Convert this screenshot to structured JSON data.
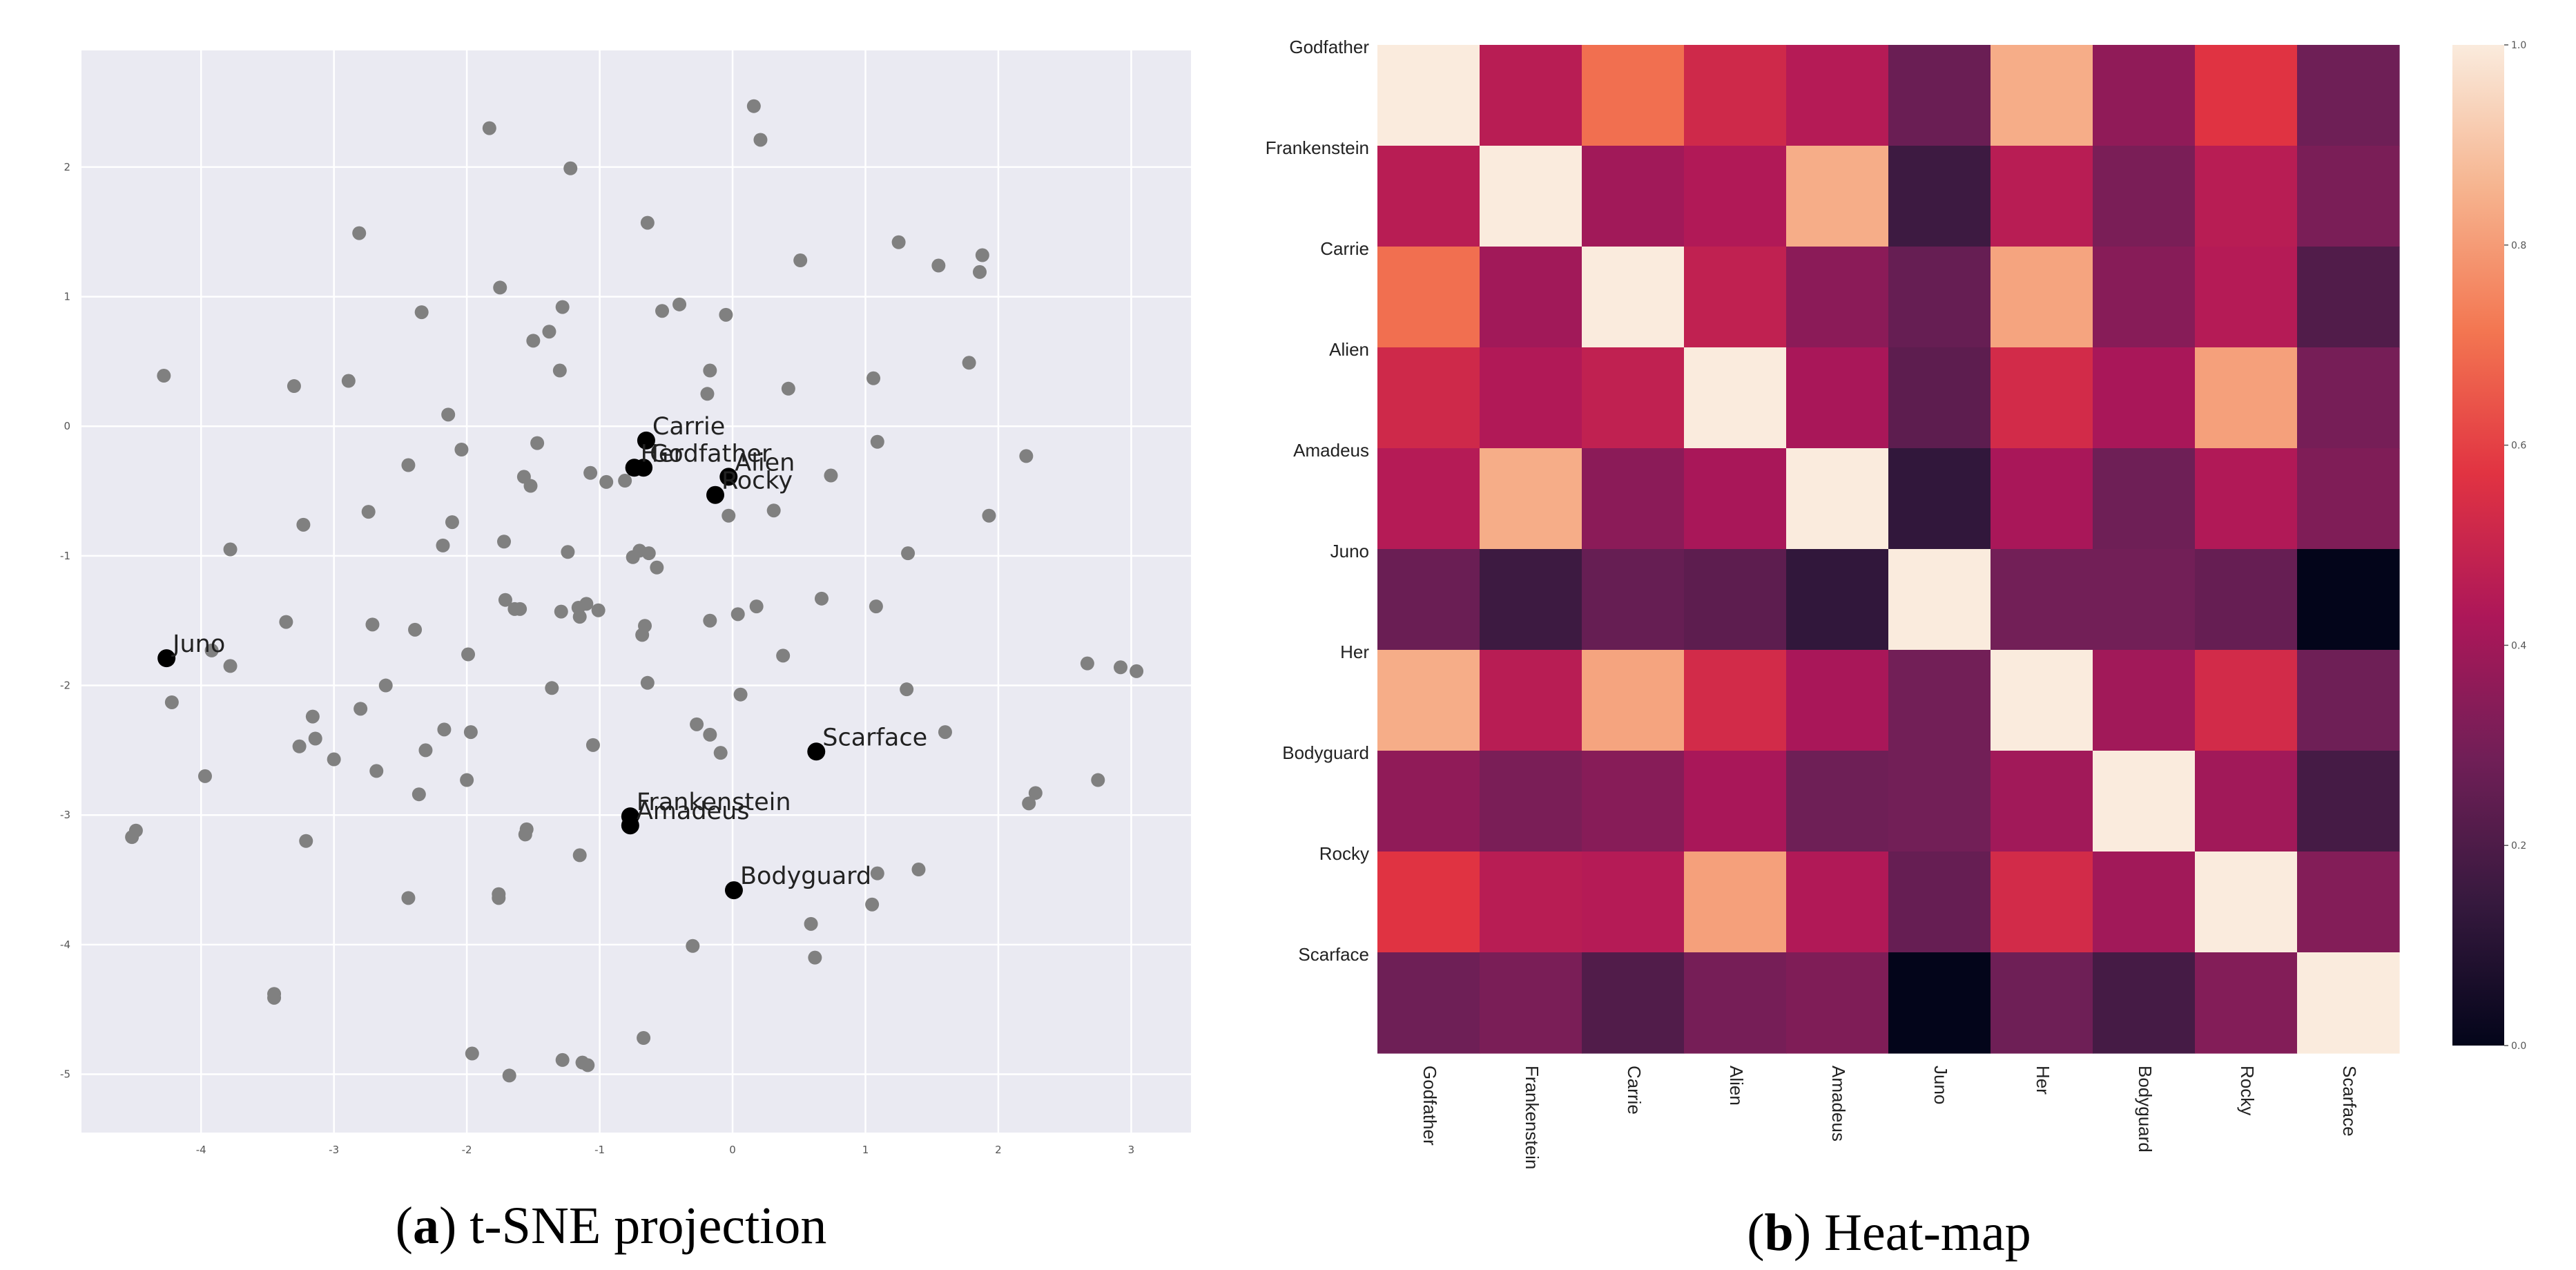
{
  "panels": {
    "a": {
      "letter": "a",
      "caption": "t-SNE projection"
    },
    "b": {
      "letter": "b",
      "caption": "Heat-map"
    }
  },
  "chart_data": [
    {
      "type": "scatter",
      "title": "",
      "xlabel": "",
      "ylabel": "",
      "xlim": [
        -4.9,
        3.45
      ],
      "ylim": [
        -5.45,
        2.9
      ],
      "xticks": [
        -4,
        -3,
        -2,
        -1,
        0,
        1,
        2,
        3
      ],
      "yticks": [
        -5,
        -4,
        -3,
        -2,
        -1,
        0,
        1,
        2
      ],
      "grid": true,
      "background_color": "#eaeaf2",
      "series": [
        {
          "color": "#808080",
          "points": [
            [
              -1.83,
              2.3
            ],
            [
              0.16,
              2.47
            ],
            [
              0.21,
              2.21
            ],
            [
              -1.22,
              1.99
            ],
            [
              -2.81,
              1.49
            ],
            [
              -0.64,
              1.57
            ],
            [
              0.51,
              1.28
            ],
            [
              1.25,
              1.42
            ],
            [
              1.55,
              1.24
            ],
            [
              1.88,
              1.32
            ],
            [
              1.86,
              1.19
            ],
            [
              -1.75,
              1.07
            ],
            [
              -2.34,
              0.88
            ],
            [
              -1.28,
              0.92
            ],
            [
              -0.53,
              0.89
            ],
            [
              -0.4,
              0.94
            ],
            [
              -0.05,
              0.86
            ],
            [
              -1.5,
              0.66
            ],
            [
              -1.38,
              0.73
            ],
            [
              -4.28,
              0.39
            ],
            [
              -3.3,
              0.31
            ],
            [
              -2.89,
              0.35
            ],
            [
              -1.3,
              0.43
            ],
            [
              -0.17,
              0.43
            ],
            [
              -0.19,
              0.25
            ],
            [
              0.42,
              0.29
            ],
            [
              1.06,
              0.37
            ],
            [
              1.78,
              0.49
            ],
            [
              -2.14,
              0.09
            ],
            [
              -2.04,
              -0.18
            ],
            [
              -1.47,
              -0.13
            ],
            [
              1.09,
              -0.12
            ],
            [
              2.21,
              -0.23
            ],
            [
              -2.44,
              -0.3
            ],
            [
              -1.57,
              -0.39
            ],
            [
              -1.52,
              -0.46
            ],
            [
              -1.07,
              -0.36
            ],
            [
              -0.95,
              -0.43
            ],
            [
              -0.81,
              -0.42
            ],
            [
              0.74,
              -0.38
            ],
            [
              -3.23,
              -0.76
            ],
            [
              -2.74,
              -0.66
            ],
            [
              -2.11,
              -0.74
            ],
            [
              -2.18,
              -0.92
            ],
            [
              -1.72,
              -0.89
            ],
            [
              -1.24,
              -0.97
            ],
            [
              -0.75,
              -1.01
            ],
            [
              -0.7,
              -0.96
            ],
            [
              -0.63,
              -0.98
            ],
            [
              -0.57,
              -1.09
            ],
            [
              -0.03,
              -0.69
            ],
            [
              0.31,
              -0.65
            ],
            [
              1.93,
              -0.69
            ],
            [
              1.32,
              -0.98
            ],
            [
              -3.78,
              -0.95
            ],
            [
              -1.71,
              -1.34
            ],
            [
              -1.64,
              -1.41
            ],
            [
              -1.6,
              -1.41
            ],
            [
              -1.29,
              -1.43
            ],
            [
              -1.16,
              -1.4
            ],
            [
              -1.15,
              -1.47
            ],
            [
              -1.1,
              -1.37
            ],
            [
              -1.01,
              -1.42
            ],
            [
              -0.66,
              -1.54
            ],
            [
              -0.68,
              -1.61
            ],
            [
              -0.17,
              -1.5
            ],
            [
              0.04,
              -1.45
            ],
            [
              0.18,
              -1.39
            ],
            [
              0.67,
              -1.33
            ],
            [
              1.08,
              -1.39
            ],
            [
              -3.36,
              -1.51
            ],
            [
              -2.71,
              -1.53
            ],
            [
              -2.39,
              -1.57
            ],
            [
              -3.92,
              -1.73
            ],
            [
              -3.78,
              -1.85
            ],
            [
              -1.99,
              -1.76
            ],
            [
              0.38,
              -1.77
            ],
            [
              -4.22,
              -2.13
            ],
            [
              -3.16,
              -2.24
            ],
            [
              -2.8,
              -2.18
            ],
            [
              -2.61,
              -2.0
            ],
            [
              -2.17,
              -2.34
            ],
            [
              -1.97,
              -2.36
            ],
            [
              -1.36,
              -2.02
            ],
            [
              -0.64,
              -1.98
            ],
            [
              0.06,
              -2.07
            ],
            [
              1.31,
              -2.03
            ],
            [
              2.67,
              -1.83
            ],
            [
              2.92,
              -1.86
            ],
            [
              3.04,
              -1.89
            ],
            [
              -3.26,
              -2.47
            ],
            [
              -3.14,
              -2.41
            ],
            [
              -3.0,
              -2.57
            ],
            [
              -2.68,
              -2.66
            ],
            [
              -2.31,
              -2.5
            ],
            [
              -1.05,
              -2.46
            ],
            [
              -0.27,
              -2.3
            ],
            [
              -0.17,
              -2.38
            ],
            [
              -0.09,
              -2.52
            ],
            [
              1.6,
              -2.36
            ],
            [
              -3.97,
              -2.7
            ],
            [
              -2.36,
              -2.84
            ],
            [
              -2.0,
              -2.73
            ],
            [
              2.75,
              -2.73
            ],
            [
              2.28,
              -2.83
            ],
            [
              2.23,
              -2.91
            ],
            [
              -4.49,
              -3.12
            ],
            [
              -4.52,
              -3.17
            ],
            [
              -3.21,
              -3.2
            ],
            [
              -1.55,
              -3.11
            ],
            [
              -1.56,
              -3.15
            ],
            [
              -1.15,
              -3.31
            ],
            [
              1.09,
              -3.45
            ],
            [
              1.4,
              -3.42
            ],
            [
              -1.76,
              -3.61
            ],
            [
              -1.76,
              -3.64
            ],
            [
              -2.44,
              -3.64
            ],
            [
              1.05,
              -3.69
            ],
            [
              0.59,
              -3.84
            ],
            [
              -0.3,
              -4.01
            ],
            [
              0.62,
              -4.1
            ],
            [
              -3.45,
              -4.38
            ],
            [
              -3.45,
              -4.41
            ],
            [
              -0.67,
              -4.72
            ],
            [
              -1.96,
              -4.84
            ],
            [
              -1.28,
              -4.89
            ],
            [
              -1.13,
              -4.91
            ],
            [
              -1.09,
              -4.93
            ],
            [
              -1.68,
              -5.01
            ]
          ]
        },
        {
          "color": "#000000",
          "points": [
            {
              "label": "Carrie",
              "x": -0.65,
              "y": -0.11
            },
            {
              "label": "Her",
              "x": -0.74,
              "y": -0.32
            },
            {
              "label": "Godfather",
              "x": -0.67,
              "y": -0.32
            },
            {
              "label": "Alien",
              "x": -0.03,
              "y": -0.39
            },
            {
              "label": "Rocky",
              "x": -0.13,
              "y": -0.53
            },
            {
              "label": "Juno",
              "x": -4.26,
              "y": -1.79
            },
            {
              "label": "Scarface",
              "x": 0.63,
              "y": -2.51
            },
            {
              "label": "Frankenstein",
              "x": -0.77,
              "y": -3.01
            },
            {
              "label": "Amadeus",
              "x": -0.77,
              "y": -3.08
            },
            {
              "label": "Bodyguard",
              "x": 0.01,
              "y": -3.58
            }
          ]
        }
      ]
    },
    {
      "type": "heatmap",
      "title": "",
      "rows": [
        "Godfather",
        "Frankenstein",
        "Carrie",
        "Alien",
        "Amadeus",
        "Juno",
        "Her",
        "Bodyguard",
        "Rocky",
        "Scarface"
      ],
      "columns": [
        "Godfather",
        "Frankenstein",
        "Carrie",
        "Alien",
        "Amadeus",
        "Juno",
        "Her",
        "Bodyguard",
        "Rocky",
        "Scarface"
      ],
      "values": [
        [
          1.0,
          0.46,
          0.7,
          0.52,
          0.45,
          0.27,
          0.84,
          0.36,
          0.57,
          0.28
        ],
        [
          0.46,
          1.0,
          0.4,
          0.44,
          0.84,
          0.16,
          0.46,
          0.31,
          0.46,
          0.31
        ],
        [
          0.7,
          0.4,
          1.0,
          0.48,
          0.35,
          0.26,
          0.82,
          0.34,
          0.45,
          0.21
        ],
        [
          0.52,
          0.44,
          0.48,
          1.0,
          0.42,
          0.24,
          0.53,
          0.42,
          0.81,
          0.3
        ],
        [
          0.45,
          0.84,
          0.35,
          0.42,
          1.0,
          0.13,
          0.42,
          0.28,
          0.44,
          0.32
        ],
        [
          0.27,
          0.16,
          0.26,
          0.24,
          0.13,
          1.0,
          0.29,
          0.29,
          0.26,
          0.0
        ],
        [
          0.84,
          0.46,
          0.82,
          0.53,
          0.42,
          0.29,
          1.0,
          0.4,
          0.53,
          0.28
        ],
        [
          0.36,
          0.31,
          0.34,
          0.42,
          0.28,
          0.29,
          0.4,
          1.0,
          0.4,
          0.18
        ],
        [
          0.57,
          0.46,
          0.45,
          0.81,
          0.44,
          0.26,
          0.53,
          0.4,
          1.0,
          0.33
        ],
        [
          0.28,
          0.31,
          0.21,
          0.3,
          0.32,
          0.0,
          0.28,
          0.18,
          0.33,
          1.0
        ]
      ],
      "colorbar": {
        "min": 0.0,
        "max": 1.0,
        "ticks": [
          "0.0",
          "0.2",
          "0.4",
          "0.6",
          "0.8",
          "1.0"
        ]
      },
      "colormap": "rocket",
      "colormap_stops": [
        "#03051a",
        "#36193e",
        "#701f57",
        "#ad1759",
        "#e13342",
        "#f37651",
        "#f6b48f",
        "#faebdd"
      ]
    }
  ]
}
